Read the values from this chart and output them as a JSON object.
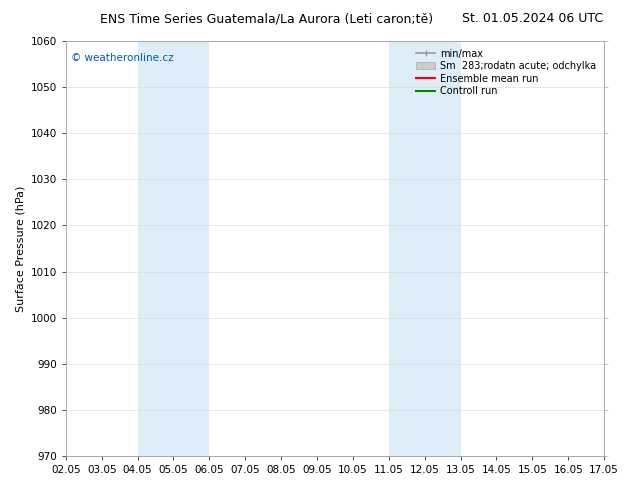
{
  "title_left": "ENS Time Series Guatemala/La Aurora (Leti caron;tě)",
  "title_right": "St. 01.05.2024 06 UTC",
  "ylabel": "Surface Pressure (hPa)",
  "ylim": [
    970,
    1060
  ],
  "yticks": [
    970,
    980,
    990,
    1000,
    1010,
    1020,
    1030,
    1040,
    1050,
    1060
  ],
  "xtick_labels": [
    "02.05",
    "03.05",
    "04.05",
    "05.05",
    "06.05",
    "07.05",
    "08.05",
    "09.05",
    "10.05",
    "11.05",
    "12.05",
    "13.05",
    "14.05",
    "15.05",
    "16.05",
    "17.05"
  ],
  "shade_bands": [
    {
      "xstart": 2,
      "xend": 4,
      "color": "#ddeef9"
    },
    {
      "xstart": 9,
      "xend": 11,
      "color": "#ddeef9"
    }
  ],
  "watermark_text": "© weatheronline.cz",
  "watermark_color": "#0055cc",
  "legend_labels": [
    "min/max",
    "Sm  283;rodatn acute; odchylka",
    "Ensemble mean run",
    "Controll run"
  ],
  "legend_line_colors": [
    "#999999",
    "#cccccc",
    "#ff0000",
    "#008800"
  ],
  "background_color": "#ffffff",
  "plot_bg_color": "#ffffff",
  "title_fontsize": 9,
  "axis_label_fontsize": 8,
  "tick_fontsize": 7.5
}
